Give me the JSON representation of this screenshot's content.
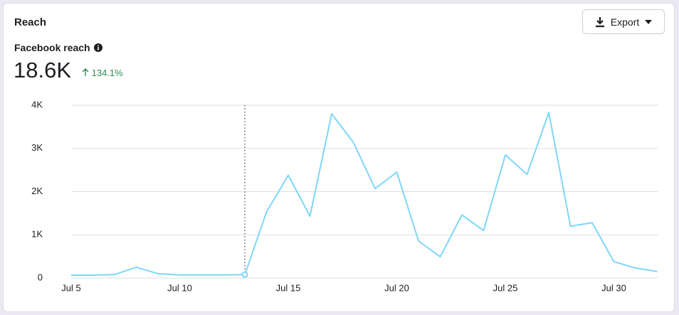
{
  "header": {
    "title": "Reach",
    "export": "Export",
    "metric": "Facebook reach",
    "total": "18.6K",
    "change": "134.1%"
  },
  "chart_data": {
    "type": "line",
    "categories": [
      "Jul 5",
      null,
      null,
      null,
      null,
      "Jul 10",
      null,
      null,
      null,
      null,
      "Jul 15",
      null,
      null,
      null,
      null,
      "Jul 20",
      null,
      null,
      null,
      null,
      "Jul 25",
      null,
      null,
      null,
      null,
      "Jul 30",
      null,
      null
    ],
    "series": [
      {
        "color": "#7fd6f7",
        "values": [
          65,
          65,
          80,
          250,
          100,
          70,
          70,
          70,
          80,
          1530,
          2380,
          1430,
          3800,
          3140,
          2070,
          2450,
          860,
          490,
          1460,
          1100,
          2850,
          2400,
          3830,
          1200,
          1280,
          380,
          230,
          150
        ]
      }
    ],
    "ylim": [
      0,
      4000
    ],
    "yticks": [
      0,
      {
        "value": 1000,
        "label": "1K"
      },
      {
        "value": 2000,
        "label": "2K"
      },
      {
        "value": 3000,
        "label": "3K"
      },
      {
        "value": 4000,
        "label": "4K"
      }
    ],
    "grid": true,
    "marker_index": 8
  }
}
